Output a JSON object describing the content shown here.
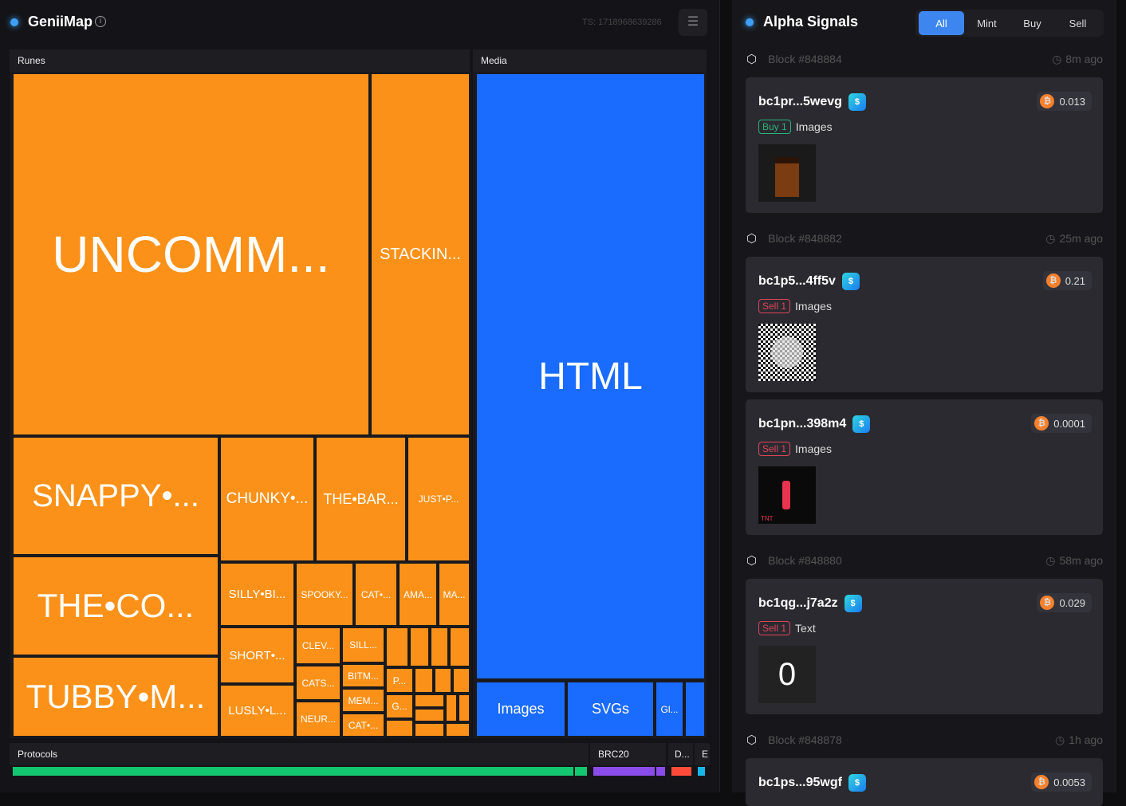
{
  "header": {
    "app_title": "GeniiMap",
    "timestamp": "TS: 1718968639286"
  },
  "treemap": {
    "runes": {
      "label": "Runes",
      "color": "#fb9119",
      "cells": [
        "UNCOMM...",
        "STACKIN...",
        "SNAPPY•...",
        "CHUNKY•...",
        "THE•BAR...",
        "JUST•P...",
        "THE•CO...",
        "TUBBY•M...",
        "SILLY•BI...",
        "SPOOKY...",
        "CAT•...",
        "AMA...",
        "MA...",
        "SHORT•...",
        "LUSLY•L...",
        "CLEV...",
        "CATS...",
        "NEUR...",
        "SILL...",
        "BITM...",
        "MEM...",
        "CAT•...",
        "P...",
        "G..."
      ]
    },
    "media": {
      "label": "Media",
      "color": "#1a6bff",
      "cells": [
        "HTML",
        "Images",
        "SVGs",
        "Gl..."
      ]
    },
    "protocols": [
      {
        "label": "Protocols",
        "color": "#12c76f"
      },
      {
        "label": "BRC20",
        "color": "#8a4ce8"
      },
      {
        "label": "D...",
        "color": "#ff4b3a"
      },
      {
        "label": "E",
        "color": "#16b7e8"
      }
    ]
  },
  "signals": {
    "title": "Alpha Signals",
    "tabs": [
      "All",
      "Mint",
      "Buy",
      "Sell"
    ],
    "active_tab": "All",
    "blocks": [
      {
        "block": "Block #848884",
        "time": "8m ago"
      },
      {
        "block": "Block #848882",
        "time": "25m ago"
      },
      {
        "block": "Block #848880",
        "time": "58m ago"
      },
      {
        "block": "Block #848878",
        "time": "1h ago"
      }
    ],
    "items": [
      {
        "address": "bc1pr...5wevg",
        "price": "0.013",
        "action": "Buy 1",
        "type": "Images",
        "thumb": "punk"
      },
      {
        "address": "bc1p5...4ff5v",
        "price": "0.21",
        "action": "Sell 1",
        "type": "Images",
        "thumb": "noise"
      },
      {
        "address": "bc1pn...398m4",
        "price": "0.0001",
        "action": "Sell 1",
        "type": "Images",
        "thumb": "tnt",
        "thumb_text": "TNT"
      },
      {
        "address": "bc1qg...j7a2z",
        "price": "0.029",
        "action": "Sell 1",
        "type": "Text",
        "thumb": "text",
        "thumb_text": "0"
      },
      {
        "address": "bc1ps...95wgf",
        "price": "0.0053"
      }
    ]
  }
}
